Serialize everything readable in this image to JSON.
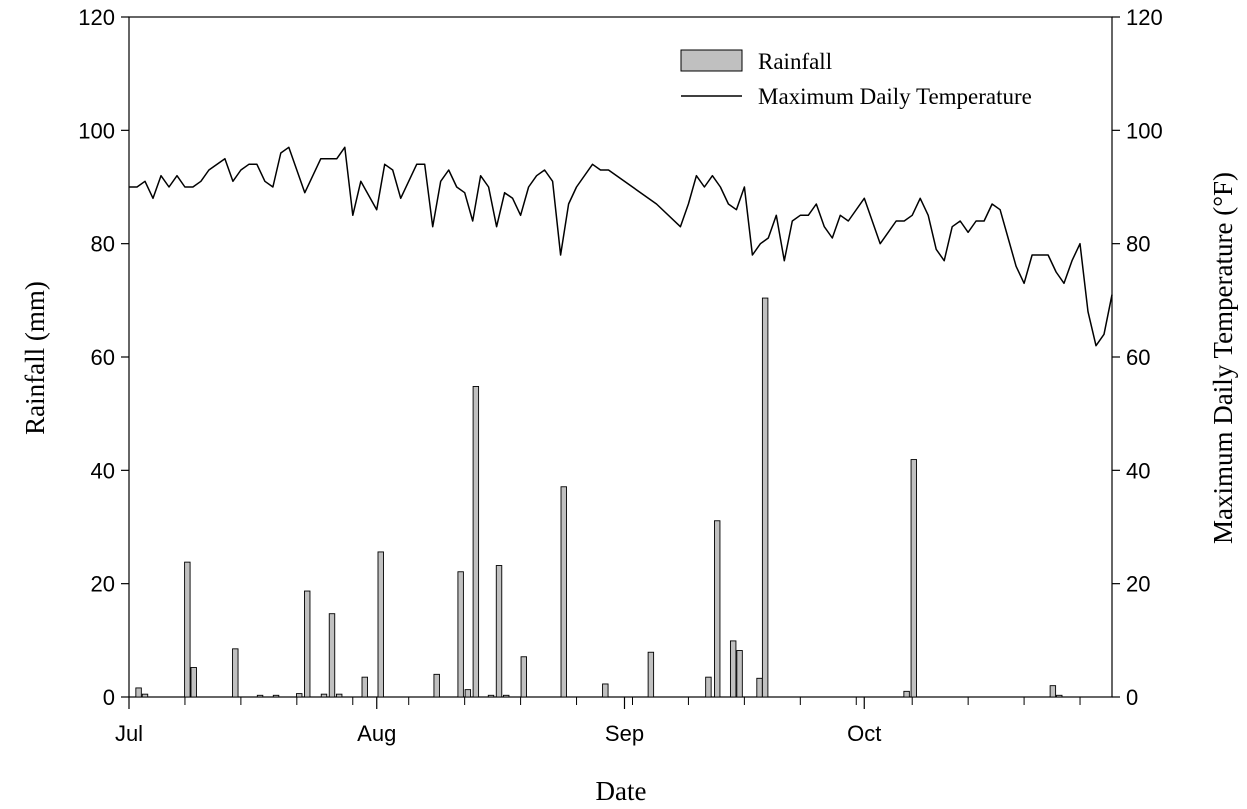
{
  "chart_data": {
    "type": "bar+line",
    "title": "",
    "xlabel": "Date",
    "ylabel_left": "Rainfall (mm)",
    "ylabel_right": "Maximum Daily Temperature (°F)",
    "ylim_left": [
      0,
      120
    ],
    "ylim_right": [
      0,
      120
    ],
    "yticks_left": [
      "0",
      "20",
      "40",
      "60",
      "80",
      "100",
      "120"
    ],
    "yticks_right": [
      "0",
      "20",
      "40",
      "60",
      "80",
      "100",
      "120"
    ],
    "x_start_date": "Jul 1",
    "x_end_date": "Oct 31",
    "x_month_labels": [
      {
        "label": "Jul",
        "day": 0
      },
      {
        "label": "Aug",
        "day": 31
      },
      {
        "label": "Sep",
        "day": 62
      },
      {
        "label": "Oct",
        "day": 92
      }
    ],
    "legend": {
      "position": "top-right",
      "entries": [
        "Rainfall",
        "Maximum Daily Temperature"
      ]
    },
    "series": [
      {
        "name": "Rainfall",
        "kind": "bar",
        "axis": "left",
        "color": "#c0c0c0",
        "points": [
          {
            "date": "Jul 2",
            "day": 1.2,
            "value": 1.6
          },
          {
            "date": "Jul 3",
            "day": 2.0,
            "value": 0.5
          },
          {
            "date": "Jul 8",
            "day": 7.3,
            "value": 23.8
          },
          {
            "date": "Jul 9",
            "day": 8.1,
            "value": 5.2
          },
          {
            "date": "Jul 14",
            "day": 13.3,
            "value": 8.5
          },
          {
            "date": "Jul 17",
            "day": 16.4,
            "value": 0.3
          },
          {
            "date": "Jul 19",
            "day": 18.4,
            "value": 0.3
          },
          {
            "date": "Jul 22",
            "day": 21.3,
            "value": 0.6
          },
          {
            "date": "Jul 23",
            "day": 22.3,
            "value": 18.7
          },
          {
            "date": "Jul 25",
            "day": 24.4,
            "value": 0.5
          },
          {
            "date": "Jul 26",
            "day": 25.4,
            "value": 14.7
          },
          {
            "date": "Jul 27",
            "day": 26.3,
            "value": 0.5
          },
          {
            "date": "Jul 30",
            "day": 29.5,
            "value": 3.5
          },
          {
            "date": "Aug 1",
            "day": 31.5,
            "value": 25.6
          },
          {
            "date": "Aug 9",
            "day": 38.5,
            "value": 4.0
          },
          {
            "date": "Aug 12",
            "day": 41.5,
            "value": 22.1
          },
          {
            "date": "Aug 13",
            "day": 42.4,
            "value": 1.3
          },
          {
            "date": "Aug 14",
            "day": 43.4,
            "value": 54.8
          },
          {
            "date": "Aug 16",
            "day": 45.3,
            "value": 0.3
          },
          {
            "date": "Aug 17",
            "day": 46.3,
            "value": 23.2
          },
          {
            "date": "Aug 18",
            "day": 47.2,
            "value": 0.3
          },
          {
            "date": "Aug 20",
            "day": 49.4,
            "value": 7.1
          },
          {
            "date": "Aug 24",
            "day": 54.4,
            "value": 37.1
          },
          {
            "date": "Aug 30",
            "day": 59.6,
            "value": 2.3
          },
          {
            "date": "Sep 5",
            "day": 65.3,
            "value": 7.9
          },
          {
            "date": "Sep 12",
            "day": 72.5,
            "value": 3.5
          },
          {
            "date": "Sep 13",
            "day": 73.6,
            "value": 31.1
          },
          {
            "date": "Sep 15",
            "day": 75.6,
            "value": 9.9
          },
          {
            "date": "Sep 16",
            "day": 76.4,
            "value": 8.2
          },
          {
            "date": "Sep 18",
            "day": 78.9,
            "value": 3.3
          },
          {
            "date": "Sep 19",
            "day": 79.6,
            "value": 70.4
          },
          {
            "date": "Oct 7",
            "day": 97.3,
            "value": 1.0
          },
          {
            "date": "Oct 8",
            "day": 98.2,
            "value": 41.9
          },
          {
            "date": "Oct 26",
            "day": 115.6,
            "value": 2.0
          },
          {
            "date": "Oct 27",
            "day": 116.4,
            "value": 0.3
          }
        ]
      },
      {
        "name": "Maximum Daily Temperature",
        "kind": "line",
        "axis": "right",
        "color": "#000000",
        "points": [
          {
            "date": "Jul 1",
            "day": 0.0,
            "value": 90
          },
          {
            "date": "Jul 2",
            "day": 1.0,
            "value": 90
          },
          {
            "date": "Jul 3",
            "day": 2.0,
            "value": 91
          },
          {
            "date": "Jul 4",
            "day": 3.0,
            "value": 88
          },
          {
            "date": "Jul 5",
            "day": 4.0,
            "value": 92
          },
          {
            "date": "Jul 6",
            "day": 5.0,
            "value": 90
          },
          {
            "date": "Jul 7",
            "day": 6.0,
            "value": 92
          },
          {
            "date": "Jul 8",
            "day": 7.0,
            "value": 90
          },
          {
            "date": "Jul 9",
            "day": 8.0,
            "value": 90
          },
          {
            "date": "Jul 10",
            "day": 9.0,
            "value": 91
          },
          {
            "date": "Jul 11",
            "day": 10.0,
            "value": 93
          },
          {
            "date": "Jul 13",
            "day": 12.0,
            "value": 95
          },
          {
            "date": "Jul 14",
            "day": 13.0,
            "value": 91
          },
          {
            "date": "Jul 15",
            "day": 14.0,
            "value": 93
          },
          {
            "date": "Jul 16",
            "day": 15.0,
            "value": 94
          },
          {
            "date": "Jul 17",
            "day": 16.0,
            "value": 94
          },
          {
            "date": "Jul 18",
            "day": 17.0,
            "value": 91
          },
          {
            "date": "Jul 19",
            "day": 18.0,
            "value": 90
          },
          {
            "date": "Jul 20",
            "day": 19.0,
            "value": 96
          },
          {
            "date": "Jul 21",
            "day": 20.0,
            "value": 97
          },
          {
            "date": "Jul 23",
            "day": 22.0,
            "value": 89
          },
          {
            "date": "Jul 24",
            "day": 23.0,
            "value": 92
          },
          {
            "date": "Jul 25",
            "day": 24.0,
            "value": 95
          },
          {
            "date": "Jul 26",
            "day": 25.0,
            "value": 95
          },
          {
            "date": "Jul 27",
            "day": 26.0,
            "value": 95
          },
          {
            "date": "Jul 28",
            "day": 27.0,
            "value": 97
          },
          {
            "date": "Jul 29",
            "day": 28.0,
            "value": 85
          },
          {
            "date": "Jul 30",
            "day": 29.0,
            "value": 91
          },
          {
            "date": "Aug 1",
            "day": 31.0,
            "value": 86
          },
          {
            "date": "Aug 2",
            "day": 32.0,
            "value": 94
          },
          {
            "date": "Aug 3",
            "day": 33.0,
            "value": 93
          },
          {
            "date": "Aug 4",
            "day": 34.0,
            "value": 88
          },
          {
            "date": "Aug 5",
            "day": 35.0,
            "value": 91
          },
          {
            "date": "Aug 6",
            "day": 36.0,
            "value": 94
          },
          {
            "date": "Aug 7",
            "day": 37.0,
            "value": 94
          },
          {
            "date": "Aug 8",
            "day": 38.0,
            "value": 83
          },
          {
            "date": "Aug 9",
            "day": 39.0,
            "value": 91
          },
          {
            "date": "Aug 10",
            "day": 40.0,
            "value": 93
          },
          {
            "date": "Aug 11",
            "day": 41.0,
            "value": 90
          },
          {
            "date": "Aug 12",
            "day": 42.0,
            "value": 89
          },
          {
            "date": "Aug 13",
            "day": 43.0,
            "value": 84
          },
          {
            "date": "Aug 14",
            "day": 44.0,
            "value": 92
          },
          {
            "date": "Aug 15",
            "day": 45.0,
            "value": 90
          },
          {
            "date": "Aug 16",
            "day": 46.0,
            "value": 83
          },
          {
            "date": "Aug 17",
            "day": 47.0,
            "value": 89
          },
          {
            "date": "Aug 18",
            "day": 48.0,
            "value": 88
          },
          {
            "date": "Aug 19",
            "day": 49.0,
            "value": 85
          },
          {
            "date": "Aug 20",
            "day": 50.0,
            "value": 90
          },
          {
            "date": "Aug 21",
            "day": 51.0,
            "value": 92
          },
          {
            "date": "Aug 22",
            "day": 52.0,
            "value": 93
          },
          {
            "date": "Aug 23",
            "day": 53.0,
            "value": 91
          },
          {
            "date": "Aug 24",
            "day": 54.0,
            "value": 78
          },
          {
            "date": "Aug 25",
            "day": 55.0,
            "value": 87
          },
          {
            "date": "Aug 26",
            "day": 56.0,
            "value": 90
          },
          {
            "date": "Aug 28",
            "day": 58.0,
            "value": 94
          },
          {
            "date": "Aug 29",
            "day": 59.0,
            "value": 93
          },
          {
            "date": "Aug 30",
            "day": 60.0,
            "value": 93
          },
          {
            "date": "Sep 5",
            "day": 66.0,
            "value": 87
          },
          {
            "date": "Sep 8",
            "day": 69.0,
            "value": 83
          },
          {
            "date": "Sep 9",
            "day": 70.0,
            "value": 87
          },
          {
            "date": "Sep 10",
            "day": 71.0,
            "value": 92
          },
          {
            "date": "Sep 11",
            "day": 72.0,
            "value": 90
          },
          {
            "date": "Sep 12",
            "day": 73.0,
            "value": 92
          },
          {
            "date": "Sep 13",
            "day": 74.0,
            "value": 90
          },
          {
            "date": "Sep 14",
            "day": 75.0,
            "value": 87
          },
          {
            "date": "Sep 15",
            "day": 76.0,
            "value": 86
          },
          {
            "date": "Sep 16",
            "day": 77.0,
            "value": 90
          },
          {
            "date": "Sep 17",
            "day": 78.0,
            "value": 78
          },
          {
            "date": "Sep 18",
            "day": 79.0,
            "value": 80
          },
          {
            "date": "Sep 19",
            "day": 80.0,
            "value": 81
          },
          {
            "date": "Sep 20",
            "day": 81.0,
            "value": 85
          },
          {
            "date": "Sep 21",
            "day": 82.0,
            "value": 77
          },
          {
            "date": "Sep 22",
            "day": 83.0,
            "value": 84
          },
          {
            "date": "Sep 23",
            "day": 84.0,
            "value": 85
          },
          {
            "date": "Sep 24",
            "day": 85.0,
            "value": 85
          },
          {
            "date": "Sep 25",
            "day": 86.0,
            "value": 87
          },
          {
            "date": "Sep 26",
            "day": 87.0,
            "value": 83
          },
          {
            "date": "Sep 27",
            "day": 88.0,
            "value": 81
          },
          {
            "date": "Sep 28",
            "day": 89.0,
            "value": 85
          },
          {
            "date": "Sep 29",
            "day": 90.0,
            "value": 84
          },
          {
            "date": "Oct 1",
            "day": 92.0,
            "value": 88
          },
          {
            "date": "Oct 3",
            "day": 94.0,
            "value": 80
          },
          {
            "date": "Oct 5",
            "day": 96.0,
            "value": 84
          },
          {
            "date": "Oct 6",
            "day": 97.0,
            "value": 84
          },
          {
            "date": "Oct 7",
            "day": 98.0,
            "value": 85
          },
          {
            "date": "Oct 8",
            "day": 99.0,
            "value": 88
          },
          {
            "date": "Oct 9",
            "day": 100.0,
            "value": 85
          },
          {
            "date": "Oct 10",
            "day": 101.0,
            "value": 79
          },
          {
            "date": "Oct 11",
            "day": 102.0,
            "value": 77
          },
          {
            "date": "Oct 12",
            "day": 103.0,
            "value": 83
          },
          {
            "date": "Oct 13",
            "day": 104.0,
            "value": 84
          },
          {
            "date": "Oct 14",
            "day": 105.0,
            "value": 82
          },
          {
            "date": "Oct 15",
            "day": 106.0,
            "value": 84
          },
          {
            "date": "Oct 16",
            "day": 107.0,
            "value": 84
          },
          {
            "date": "Oct 17",
            "day": 108.0,
            "value": 87
          },
          {
            "date": "Oct 18",
            "day": 109.0,
            "value": 86
          },
          {
            "date": "Oct 19",
            "day": 110.0,
            "value": 81
          },
          {
            "date": "Oct 20",
            "day": 111.0,
            "value": 76
          },
          {
            "date": "Oct 21",
            "day": 112.0,
            "value": 73
          },
          {
            "date": "Oct 22",
            "day": 113.0,
            "value": 78
          },
          {
            "date": "Oct 24",
            "day": 115.0,
            "value": 78
          },
          {
            "date": "Oct 25",
            "day": 116.0,
            "value": 75
          },
          {
            "date": "Oct 26",
            "day": 117.0,
            "value": 73
          },
          {
            "date": "Oct 27",
            "day": 118.0,
            "value": 77
          },
          {
            "date": "Oct 28",
            "day": 119.0,
            "value": 80
          },
          {
            "date": "Oct 29",
            "day": 120.0,
            "value": 68
          },
          {
            "date": "Oct 30",
            "day": 121.0,
            "value": 62
          },
          {
            "date": "Oct 31",
            "day": 122.0,
            "value": 64
          },
          {
            "date": "Oct 31",
            "day": 123.0,
            "value": 71
          }
        ]
      }
    ]
  }
}
